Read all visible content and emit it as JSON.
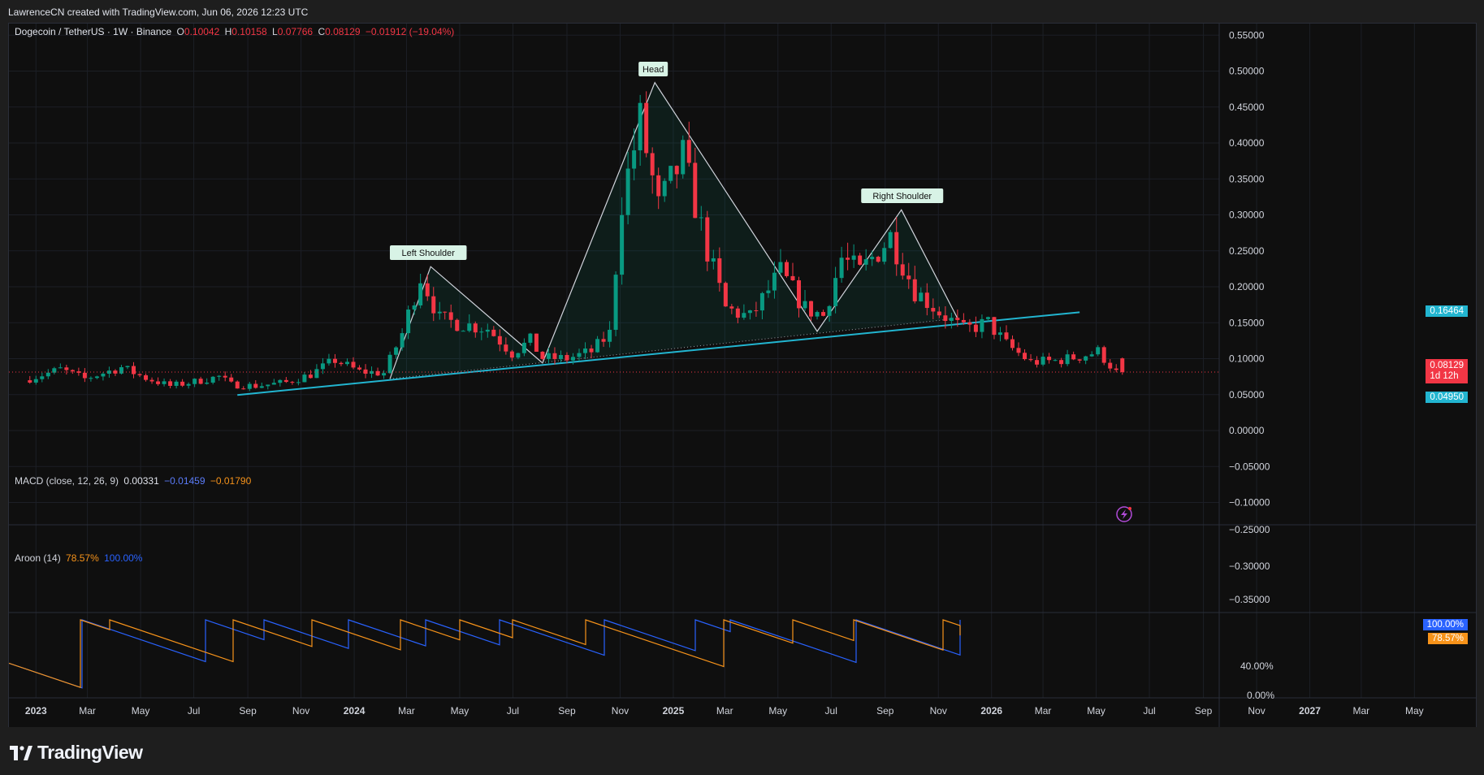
{
  "header": {
    "attribution": "LawrenceCN created with TradingView.com, Jun 06, 2026 12:23 UTC"
  },
  "legend": {
    "symbol": "Dogecoin / TetherUS · 1W · Binance",
    "open_label": "O",
    "open": "0.10042",
    "high_label": "H",
    "high": "0.10158",
    "low_label": "L",
    "low": "0.07766",
    "close_label": "C",
    "close": "0.08129",
    "change": "−0.01912 (−19.04%)"
  },
  "macd": {
    "label": "MACD (close, 12, 26, 9)",
    "v1": "0.00331",
    "v2": "−0.01459",
    "v3": "−0.01790"
  },
  "aroon": {
    "label": "Aroon (14)",
    "v1": "78.57%",
    "v2": "100.00%"
  },
  "badges": {
    "neckline": "0.16464",
    "last_price": "0.08129",
    "countdown": "1d 12h",
    "low_marker": "0.04950",
    "aroon_up": "100.00%",
    "aroon_down": "78.57%"
  },
  "annotations": {
    "left_shoulder": "Left Shoulder",
    "head": "Head",
    "right_shoulder": "Right Shoulder"
  },
  "branding": {
    "logo_text": "TradingView"
  },
  "colors": {
    "up": "#089981",
    "down": "#f23645",
    "neckline": "#22b5d0",
    "aroon_up": "#2962ff",
    "aroon_down": "#f7931a",
    "pattern": "#d1d4dc"
  },
  "chart_data": [
    {
      "type": "candlestick",
      "title": "Dogecoin / TetherUS · 1W · Binance",
      "x_ticks": [
        "2023",
        "Mar",
        "May",
        "Jul",
        "Sep",
        "Nov",
        "2024",
        "Mar",
        "May",
        "Jul",
        "Sep",
        "Nov",
        "2025",
        "Mar",
        "May",
        "Jul",
        "Sep",
        "Nov",
        "2026",
        "Mar",
        "May",
        "Jul",
        "Sep",
        "Nov",
        "2027",
        "Mar",
        "May"
      ],
      "y_ticks": [
        "0.55000",
        "0.50000",
        "0.45000",
        "0.40000",
        "0.35000",
        "0.30000",
        "0.25000",
        "0.20000",
        "0.15000",
        "0.10000",
        "0.05000",
        "0.00000",
        "−0.05000",
        "−0.10000"
      ],
      "ylim": [
        -0.115,
        0.565
      ],
      "key_points": [
        {
          "label": "Left Shoulder",
          "date": "2024-03-25",
          "price": 0.228
        },
        {
          "label": "Head",
          "date": "2024-12-08",
          "price": 0.484
        },
        {
          "label": "Right Shoulder",
          "date": "2025-09-14",
          "price": 0.307
        }
      ],
      "weekly_close_path": [
        [
          "2022-12-25",
          0.07
        ],
        [
          "2023-02-05",
          0.085
        ],
        [
          "2023-03-05",
          0.072
        ],
        [
          "2023-04-16",
          0.088
        ],
        [
          "2023-05-14",
          0.073
        ],
        [
          "2023-06-11",
          0.062
        ],
        [
          "2023-07-09",
          0.068
        ],
        [
          "2023-08-06",
          0.075
        ],
        [
          "2023-08-20",
          0.064
        ],
        [
          "2023-09-17",
          0.062
        ],
        [
          "2023-10-22",
          0.067
        ],
        [
          "2023-11-19",
          0.078
        ],
        [
          "2023-12-17",
          0.098
        ],
        [
          "2024-01-14",
          0.082
        ],
        [
          "2024-02-11",
          0.08
        ],
        [
          "2024-03-03",
          0.135
        ],
        [
          "2024-03-25",
          0.215
        ],
        [
          "2024-04-14",
          0.155
        ],
        [
          "2024-05-12",
          0.148
        ],
        [
          "2024-06-09",
          0.142
        ],
        [
          "2024-07-07",
          0.108
        ],
        [
          "2024-07-28",
          0.125
        ],
        [
          "2024-08-11",
          0.101
        ],
        [
          "2024-09-08",
          0.1
        ],
        [
          "2024-10-06",
          0.11
        ],
        [
          "2024-10-27",
          0.135
        ],
        [
          "2024-11-10",
          0.32
        ],
        [
          "2024-12-01",
          0.43
        ],
        [
          "2024-12-22",
          0.31
        ],
        [
          "2025-01-19",
          0.38
        ],
        [
          "2025-02-16",
          0.25
        ],
        [
          "2025-03-09",
          0.17
        ],
        [
          "2025-04-06",
          0.157
        ],
        [
          "2025-05-11",
          0.22
        ],
        [
          "2025-06-08",
          0.17
        ],
        [
          "2025-06-29",
          0.16
        ],
        [
          "2025-07-20",
          0.24
        ],
        [
          "2025-08-10",
          0.22
        ],
        [
          "2025-09-14",
          0.27
        ],
        [
          "2025-10-12",
          0.195
        ],
        [
          "2025-11-09",
          0.165
        ],
        [
          "2025-12-07",
          0.14
        ],
        [
          "2026-01-04",
          0.15
        ],
        [
          "2026-01-25",
          0.12
        ],
        [
          "2026-02-22",
          0.095
        ],
        [
          "2026-03-22",
          0.097
        ],
        [
          "2026-04-19",
          0.103
        ],
        [
          "2026-05-10",
          0.11
        ],
        [
          "2026-05-31",
          0.081
        ]
      ]
    },
    {
      "type": "line",
      "title": "MACD (close, 12, 26, 9)",
      "y_ticks": [
        "−0.25000",
        "−0.30000",
        "−0.35000"
      ],
      "last_values": [
        0.00331,
        -0.01459,
        -0.0179
      ]
    },
    {
      "type": "line",
      "title": "Aroon (14)",
      "y_ticks": [
        "40.00%",
        "0.00%"
      ],
      "series": [
        {
          "name": "Aroon Up",
          "last": 100.0
        },
        {
          "name": "Aroon Down",
          "last": 78.57
        }
      ]
    }
  ]
}
